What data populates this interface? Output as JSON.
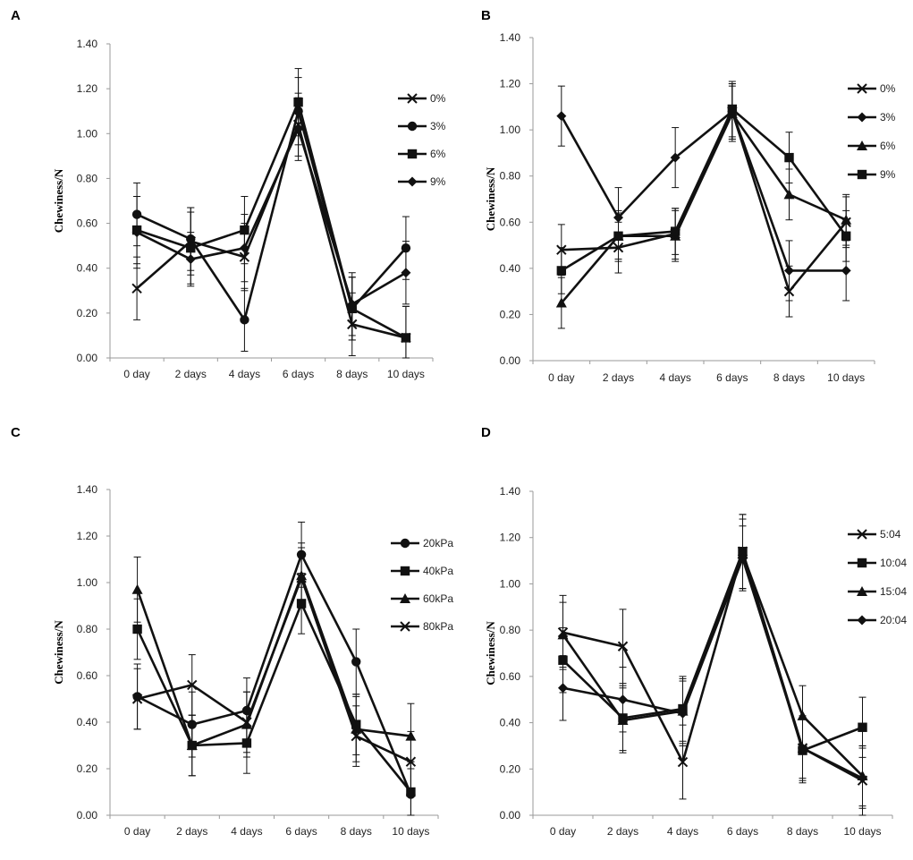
{
  "chart_data": [
    {
      "panel": "A",
      "type": "line",
      "ylabel": "Chewiness/N",
      "ylim": [
        0,
        1.4
      ],
      "yticks": [
        "0.00",
        "0.20",
        "0.40",
        "0.60",
        "0.80",
        "1.00",
        "1.20",
        "1.40"
      ],
      "categories": [
        "0 day",
        "2 days",
        "4 days",
        "6 days",
        "8 days",
        "10 days"
      ],
      "series": [
        {
          "name": "0%",
          "marker": "x",
          "values": [
            0.31,
            0.52,
            0.45,
            1.04,
            0.15,
            0.09
          ],
          "errors": [
            0.14,
            0.15,
            0.15,
            0.14,
            0.14,
            0.14
          ]
        },
        {
          "name": "3%",
          "marker": "circle",
          "values": [
            0.64,
            0.53,
            0.17,
            1.1,
            0.22,
            0.49
          ],
          "errors": [
            0.14,
            0.14,
            0.14,
            0.15,
            0.14,
            0.14
          ]
        },
        {
          "name": "6%",
          "marker": "square",
          "values": [
            0.57,
            0.49,
            0.57,
            1.14,
            0.22,
            0.09
          ],
          "errors": [
            0.15,
            0.16,
            0.15,
            0.15,
            0.14,
            0.14
          ]
        },
        {
          "name": "9%",
          "marker": "diamond",
          "values": [
            0.56,
            0.44,
            0.49,
            1.02,
            0.24,
            0.38
          ],
          "errors": [
            0.16,
            0.12,
            0.15,
            0.14,
            0.14,
            0.14
          ]
        }
      ]
    },
    {
      "panel": "B",
      "type": "line",
      "ylabel": "Chewiness/N",
      "ylim": [
        0,
        1.4
      ],
      "yticks": [
        "0.00",
        "0.20",
        "0.40",
        "0.60",
        "0.80",
        "1.00",
        "1.20",
        "1.40"
      ],
      "categories": [
        "0 day",
        "2 days",
        "4 days",
        "6 days",
        "8 days",
        "10 days"
      ],
      "series": [
        {
          "name": "0%",
          "marker": "x",
          "values": [
            0.48,
            0.49,
            0.55,
            1.08,
            0.3,
            0.6
          ],
          "errors": [
            0.11,
            0.11,
            0.11,
            0.12,
            0.11,
            0.11
          ]
        },
        {
          "name": "3%",
          "marker": "diamond",
          "values": [
            1.06,
            0.62,
            0.88,
            1.08,
            0.39,
            0.39
          ],
          "errors": [
            0.13,
            0.13,
            0.13,
            0.12,
            0.13,
            0.13
          ]
        },
        {
          "name": "6%",
          "marker": "triangle",
          "values": [
            0.25,
            0.54,
            0.54,
            1.07,
            0.72,
            0.61
          ],
          "errors": [
            0.11,
            0.11,
            0.11,
            0.12,
            0.11,
            0.11
          ]
        },
        {
          "name": "9%",
          "marker": "square",
          "values": [
            0.39,
            0.54,
            0.56,
            1.09,
            0.88,
            0.54
          ],
          "errors": [
            0.1,
            0.1,
            0.1,
            0.12,
            0.11,
            0.11
          ]
        }
      ]
    },
    {
      "panel": "C",
      "type": "line",
      "ylabel": "Chewiness/N",
      "ylim": [
        0,
        1.4
      ],
      "yticks": [
        "0.00",
        "0.20",
        "0.40",
        "0.60",
        "0.80",
        "1.00",
        "1.20",
        "1.40"
      ],
      "categories": [
        "0 day",
        "2 days",
        "4 days",
        "6 days",
        "8 days",
        "10 days"
      ],
      "series": [
        {
          "name": "20kPa",
          "marker": "circle",
          "values": [
            0.51,
            0.39,
            0.45,
            1.12,
            0.66,
            0.09
          ],
          "errors": [
            0.14,
            0.14,
            0.14,
            0.14,
            0.14,
            0.14
          ]
        },
        {
          "name": "40kPa",
          "marker": "square",
          "values": [
            0.8,
            0.3,
            0.31,
            0.91,
            0.39,
            0.1
          ],
          "errors": [
            0.13,
            0.13,
            0.13,
            0.13,
            0.13,
            0.13
          ]
        },
        {
          "name": "60kPa",
          "marker": "triangle",
          "values": [
            0.97,
            0.3,
            0.39,
            1.03,
            0.37,
            0.34
          ],
          "errors": [
            0.14,
            0.13,
            0.14,
            0.14,
            0.14,
            0.14
          ]
        },
        {
          "name": "80kPa",
          "marker": "x",
          "values": [
            0.5,
            0.56,
            0.4,
            1.02,
            0.34,
            0.23
          ],
          "errors": [
            0.13,
            0.13,
            0.13,
            0.13,
            0.13,
            0.13
          ]
        }
      ]
    },
    {
      "panel": "D",
      "type": "line",
      "ylabel": "Chewiness/N",
      "ylim": [
        0,
        1.4
      ],
      "yticks": [
        "0.00",
        "0.20",
        "0.40",
        "0.60",
        "0.80",
        "1.00",
        "1.20",
        "1.40"
      ],
      "categories": [
        "0 day",
        "2 days",
        "4 days",
        "6 days",
        "8 days",
        "10 days"
      ],
      "series": [
        {
          "name": "5:04",
          "marker": "x",
          "values": [
            0.79,
            0.73,
            0.23,
            1.14,
            0.29,
            0.15
          ],
          "errors": [
            0.16,
            0.16,
            0.16,
            0.16,
            0.14,
            0.15
          ]
        },
        {
          "name": "10:04",
          "marker": "square",
          "values": [
            0.67,
            0.42,
            0.46,
            1.14,
            0.28,
            0.38
          ],
          "errors": [
            0.14,
            0.14,
            0.14,
            0.16,
            0.14,
            0.13
          ]
        },
        {
          "name": "15:04",
          "marker": "triangle",
          "values": [
            0.78,
            0.41,
            0.45,
            1.13,
            0.43,
            0.17
          ],
          "errors": [
            0.14,
            0.14,
            0.14,
            0.15,
            0.13,
            0.13
          ]
        },
        {
          "name": "20:04",
          "marker": "diamond",
          "values": [
            0.55,
            0.5,
            0.44,
            1.11,
            0.29,
            0.16
          ],
          "errors": [
            0.14,
            0.14,
            0.14,
            0.14,
            0.13,
            0.13
          ]
        }
      ]
    }
  ]
}
